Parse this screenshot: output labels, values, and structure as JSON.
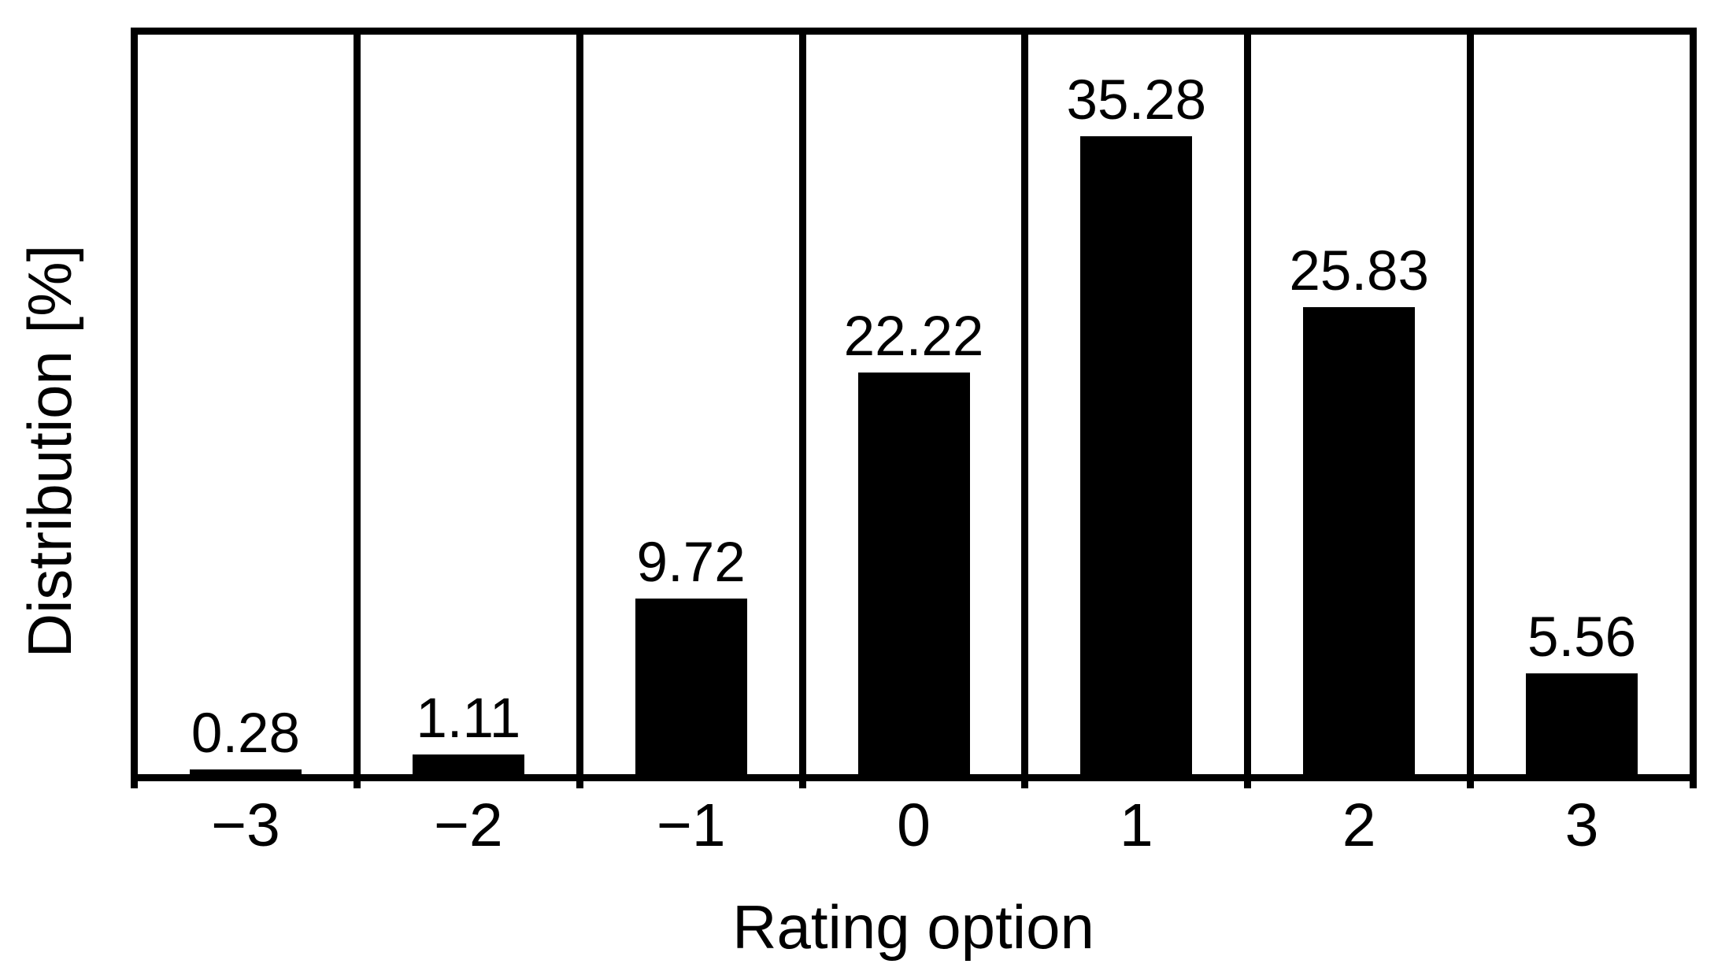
{
  "chart_data": {
    "type": "bar",
    "title": "",
    "xlabel": "Rating option",
    "ylabel": "Distribution [%]",
    "categories": [
      "−3",
      "−2",
      "−1",
      "0",
      "1",
      "2",
      "3"
    ],
    "values": [
      0.28,
      1.11,
      9.72,
      22.22,
      35.28,
      25.83,
      5.56
    ],
    "value_labels": [
      "0.28",
      "1.11",
      "9.72",
      "22.22",
      "35.28",
      "25.83",
      "5.56"
    ],
    "ylim": [
      0,
      40.9
    ],
    "bar_color": "#000000",
    "axis_color": "#000000",
    "background_color": "#ffffff",
    "legend": "none",
    "grid": "off",
    "layout_notes": "vertical divider lines separate each category cell; numeric value labels above each bar; short ticks below axis at cell boundaries"
  }
}
